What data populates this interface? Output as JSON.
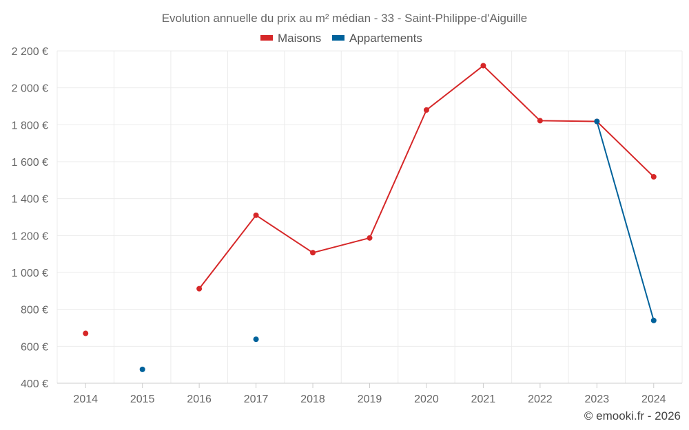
{
  "chart_data": {
    "type": "line",
    "title": "Evolution annuelle du prix au m² médian - 33 - Saint-Philippe-d'Aiguille",
    "categories": [
      "2014",
      "2015",
      "2016",
      "2017",
      "2018",
      "2019",
      "2020",
      "2021",
      "2022",
      "2023",
      "2024"
    ],
    "series": [
      {
        "name": "Maisons",
        "color": "#d62728",
        "values": [
          670,
          null,
          912,
          1310,
          1107,
          1187,
          1880,
          2120,
          1822,
          1818,
          1518
        ]
      },
      {
        "name": "Appartements",
        "color": "#00629b",
        "values": [
          null,
          475,
          null,
          638,
          null,
          null,
          null,
          null,
          null,
          1818,
          740
        ]
      }
    ],
    "ylim": [
      400,
      2200
    ],
    "yticks": [
      400,
      600,
      800,
      1000,
      1200,
      1400,
      1600,
      1800,
      2000,
      2200
    ],
    "ytick_labels": [
      "400 €",
      "600 €",
      "800 €",
      "1 000 €",
      "1 200 €",
      "1 400 €",
      "1 600 €",
      "1 800 €",
      "2 000 €",
      "2 200 €"
    ],
    "xlabel": "",
    "ylabel": "",
    "grid": true,
    "legend_position": "top-center",
    "copyright": "© emooki.fr - 2026"
  }
}
